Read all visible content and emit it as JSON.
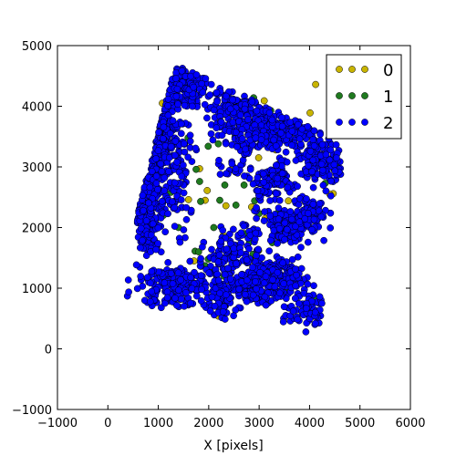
{
  "chart_data": {
    "type": "scatter",
    "title": "",
    "xlabel": "X [pixels]",
    "ylabel": "",
    "xlim": [
      -1000,
      6000
    ],
    "ylim": [
      -1000,
      5000
    ],
    "xticks": [
      -1000,
      0,
      1000,
      2000,
      3000,
      4000,
      5000,
      6000
    ],
    "yticks": [
      -1000,
      0,
      1000,
      2000,
      3000,
      4000,
      5000
    ],
    "xtick_labels": [
      "−1000",
      "0",
      "1000",
      "2000",
      "3000",
      "4000",
      "5000",
      "6000"
    ],
    "ytick_labels": [
      "−1000",
      "0",
      "1000",
      "2000",
      "3000",
      "4000",
      "5000"
    ],
    "grid": false,
    "legend_position": "top-right",
    "footprint_corners": [
      [
        1350,
        4700
      ],
      [
        4700,
        3400
      ],
      [
        4200,
        200
      ],
      [
        150,
        800
      ]
    ],
    "series": [
      {
        "name": "0",
        "color": "#c8b400",
        "points": [
          [
            1820,
            2970
          ],
          [
            2480,
            3010
          ],
          [
            4470,
            2560
          ],
          [
            2990,
            1620
          ],
          [
            2340,
            2360
          ],
          [
            1600,
            2460
          ],
          [
            2990,
            3150
          ],
          [
            2190,
            540
          ],
          [
            2770,
            830
          ],
          [
            3120,
            2150
          ],
          [
            2600,
            1030
          ],
          [
            4010,
            3890
          ],
          [
            2460,
            1340
          ],
          [
            1710,
            1450
          ],
          [
            3590,
            1310
          ],
          [
            3930,
            720
          ],
          [
            1320,
            4380
          ],
          [
            3580,
            2440
          ],
          [
            2850,
            2340
          ],
          [
            2290,
            1870
          ],
          [
            3100,
            4090
          ],
          [
            2900,
            1450
          ],
          [
            3330,
            3280
          ],
          [
            2230,
            1650
          ],
          [
            2920,
            1370
          ],
          [
            3140,
            1170
          ],
          [
            1930,
            2450
          ],
          [
            2150,
            1470
          ],
          [
            1450,
            2960
          ],
          [
            1080,
            4050
          ],
          [
            4120,
            4360
          ],
          [
            2580,
            4070
          ],
          [
            4400,
            2550
          ],
          [
            1970,
            2610
          ]
        ]
      },
      {
        "name": "1",
        "color": "#1f7a1f",
        "points": [
          [
            1840,
            2430
          ],
          [
            1730,
            1610
          ],
          [
            3530,
            1960
          ],
          [
            2540,
            2370
          ],
          [
            2880,
            1560
          ],
          [
            1820,
            2760
          ],
          [
            1750,
            2960
          ],
          [
            3370,
            2240
          ],
          [
            3540,
            1010
          ],
          [
            2330,
            600
          ],
          [
            1250,
            2580
          ],
          [
            2190,
            3380
          ],
          [
            1500,
            2840
          ],
          [
            1990,
            1480
          ],
          [
            2910,
            2440
          ],
          [
            2220,
            2450
          ],
          [
            3510,
            2730
          ],
          [
            1990,
            3340
          ],
          [
            3000,
            2230
          ],
          [
            1800,
            1600
          ],
          [
            2320,
            2700
          ],
          [
            1590,
            3480
          ],
          [
            3580,
            1290
          ],
          [
            3230,
            3930
          ],
          [
            4090,
            830
          ],
          [
            3900,
            2260
          ],
          [
            2520,
            3490
          ],
          [
            4540,
            3000
          ],
          [
            1930,
            1370
          ],
          [
            1520,
            1180
          ],
          [
            2050,
            1320
          ],
          [
            2810,
            1760
          ],
          [
            1230,
            3620
          ],
          [
            2890,
            4140
          ],
          [
            4310,
            2730
          ],
          [
            1680,
            4000
          ],
          [
            3260,
            1750
          ],
          [
            1400,
            2000
          ],
          [
            2100,
            2000
          ],
          [
            3700,
            2050
          ],
          [
            2700,
            1900
          ],
          [
            2300,
            1200
          ],
          [
            1100,
            2200
          ],
          [
            2700,
            2700
          ]
        ]
      },
      {
        "name": "2",
        "color": "#0000ff",
        "points": []
      }
    ],
    "clusters": [
      {
        "cx": 3530,
        "cy": 1990,
        "rx": 290,
        "ry": 220,
        "n": 190
      },
      {
        "cx": 3300,
        "cy": 1240,
        "rx": 520,
        "ry": 330,
        "n": 170
      },
      {
        "cx": 2840,
        "cy": 1020,
        "rx": 420,
        "ry": 260,
        "n": 110
      },
      {
        "cx": 2230,
        "cy": 900,
        "rx": 340,
        "ry": 330,
        "n": 100
      },
      {
        "cx": 1340,
        "cy": 1010,
        "rx": 650,
        "ry": 340,
        "n": 190
      },
      {
        "cx": 790,
        "cy": 2400,
        "rx": 290,
        "ry": 780,
        "n": 220
      },
      {
        "cx": 970,
        "cy": 3550,
        "rx": 260,
        "ry": 560,
        "n": 150
      },
      {
        "cx": 1280,
        "cy": 4300,
        "rx": 260,
        "ry": 260,
        "n": 70
      },
      {
        "cx": 1670,
        "cy": 4350,
        "rx": 330,
        "ry": 320,
        "n": 110
      },
      {
        "cx": 2640,
        "cy": 3920,
        "rx": 640,
        "ry": 400,
        "n": 180
      },
      {
        "cx": 3580,
        "cy": 3650,
        "rx": 640,
        "ry": 320,
        "n": 150
      },
      {
        "cx": 4240,
        "cy": 3070,
        "rx": 420,
        "ry": 340,
        "n": 140
      },
      {
        "cx": 3330,
        "cy": 2840,
        "rx": 340,
        "ry": 310,
        "n": 90
      },
      {
        "cx": 4010,
        "cy": 2190,
        "rx": 370,
        "ry": 280,
        "n": 90
      },
      {
        "cx": 3950,
        "cy": 650,
        "rx": 350,
        "ry": 280,
        "n": 70
      },
      {
        "cx": 2650,
        "cy": 2500,
        "rx": 500,
        "ry": 780,
        "n": 90
      },
      {
        "cx": 1400,
        "cy": 3000,
        "rx": 280,
        "ry": 900,
        "n": 120
      },
      {
        "cx": 2400,
        "cy": 1500,
        "rx": 420,
        "ry": 260,
        "n": 70
      },
      {
        "cx": 3800,
        "cy": 4300,
        "rx": 400,
        "ry": 180,
        "n": 50
      },
      {
        "cx": 2900,
        "cy": 3400,
        "rx": 400,
        "ry": 300,
        "n": 60
      }
    ],
    "holes": [
      {
        "cx": 2480,
        "cy": 2450,
        "rx": 460,
        "ry": 440
      },
      {
        "cx": 1910,
        "cy": 2850,
        "rx": 240,
        "ry": 280
      },
      {
        "cx": 3070,
        "cy": 3130,
        "rx": 300,
        "ry": 200
      }
    ],
    "legend": {
      "entries": [
        "0",
        "1",
        "2"
      ]
    }
  }
}
